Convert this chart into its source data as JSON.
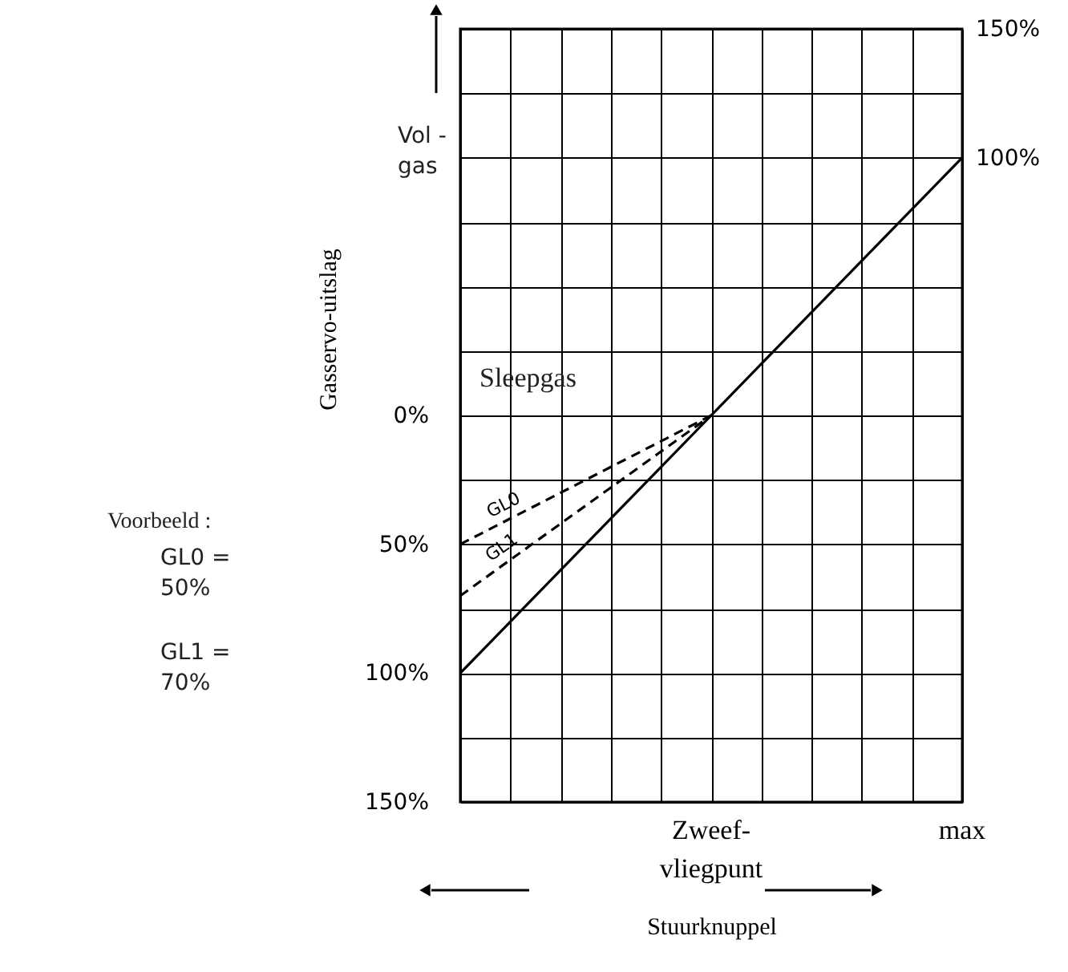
{
  "chart_data": {
    "type": "line",
    "xlabel": "Stuurknuppel",
    "ylabel": "Gasservo-uitslag",
    "categories": [
      null,
      null,
      null,
      null,
      null,
      "Zweef-\nvliegpunt",
      null,
      null,
      null,
      null,
      "max"
    ],
    "ylim": [
      -150,
      150
    ],
    "yticks": [
      {
        "value": -150,
        "label": "150%"
      },
      {
        "value": -125,
        "label": null
      },
      {
        "value": -100,
        "label": "100%"
      },
      {
        "value": -75,
        "label": null
      },
      {
        "value": -50,
        "label": "50%"
      },
      {
        "value": -25,
        "label": null
      },
      {
        "value": 0,
        "label": "0%"
      },
      {
        "value": 25,
        "label": null
      },
      {
        "value": 50,
        "label": null
      },
      {
        "value": 75,
        "label": null
      },
      {
        "value": 100,
        "label": null
      },
      {
        "value": 125,
        "label": null
      },
      {
        "value": 150,
        "label": null
      }
    ],
    "y2lim": [
      -150,
      150
    ],
    "y2ticks": [
      {
        "value": 100,
        "label": "100%"
      },
      {
        "value": 150,
        "label": "150%"
      }
    ],
    "grid": true,
    "marker": "none",
    "series": [
      {
        "color": "#000000",
        "line_style": "solid",
        "values": [
          -100,
          -80,
          -60,
          -40,
          -20,
          0,
          20,
          40,
          60,
          80,
          100
        ]
      },
      {
        "name": "GL0",
        "color": "#000000",
        "line_style": "dashed",
        "values": [
          -50,
          -40,
          -30,
          -20,
          -10,
          0,
          null,
          null,
          null,
          null,
          null
        ]
      },
      {
        "name": "GL1",
        "color": "#000000",
        "line_style": "dashed",
        "values": [
          -70,
          -56,
          -42,
          -28,
          -14,
          0,
          null,
          null,
          null,
          null,
          null
        ]
      }
    ],
    "annotations": [
      "Sleepgas",
      "Vol -\ngas",
      "Voorbeeld :",
      "GL0 =\n50%",
      "GL1 =\n70%"
    ]
  }
}
